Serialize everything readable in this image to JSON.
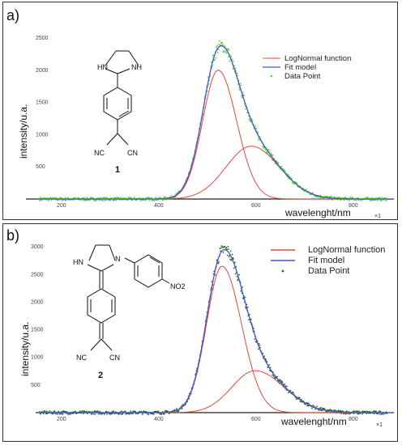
{
  "colors": {
    "lognormal": "#e8473f",
    "fit": "#4b4fd6",
    "points_a": "#42dd2a",
    "points_b": "#1e6b2a",
    "axis": "#222222"
  },
  "chart_data": [
    {
      "type": "line",
      "panel_label": "a)",
      "xlabel": "wavelenght/nm",
      "ylabel": "intensity/u.a.",
      "x_multiplier": "×1",
      "xlim": [
        150,
        880
      ],
      "ylim": [
        0,
        2550
      ],
      "x_ticks": [
        200,
        400,
        600,
        800
      ],
      "y_ticks": [
        500,
        1000,
        1500,
        2000,
        2500
      ],
      "legend": [
        "LogNormal function",
        "Fit model",
        "Data Point"
      ],
      "legend_position": "top-right",
      "components": [
        {
          "name": "LogNormal function",
          "peak_x": 522,
          "peak_y": 2000,
          "sigma_left": 32,
          "sigma_right": 38
        },
        {
          "name": "LogNormal function",
          "peak_x": 590,
          "peak_y": 820,
          "sigma_left": 52,
          "sigma_right": 58
        }
      ],
      "series": [
        {
          "name": "LogNormal function",
          "style": "line"
        },
        {
          "name": "Fit model",
          "style": "line"
        },
        {
          "name": "Data Point",
          "style": "points",
          "baseline_noise": 25
        }
      ],
      "molecule": {
        "atoms": [
          "HN",
          "NH",
          "NC",
          "CN"
        ],
        "compound_number": "1"
      }
    },
    {
      "type": "line",
      "panel_label": "b)",
      "xlabel": "wavelenght/nm",
      "ylabel": "intensity/u.a.",
      "x_multiplier": "×1",
      "xlim": [
        150,
        880
      ],
      "ylim": [
        -300,
        3150
      ],
      "x_ticks": [
        200,
        400,
        600,
        800
      ],
      "y_ticks": [
        500,
        1000,
        1500,
        2000,
        2500,
        3000
      ],
      "legend": [
        "LogNormal function",
        "Fit model",
        "Data Point"
      ],
      "legend_position": "top-right",
      "components": [
        {
          "name": "LogNormal function",
          "peak_x": 530,
          "peak_y": 2650,
          "sigma_left": 32,
          "sigma_right": 40
        },
        {
          "name": "LogNormal function",
          "peak_x": 598,
          "peak_y": 760,
          "sigma_left": 48,
          "sigma_right": 60
        }
      ],
      "series": [
        {
          "name": "LogNormal function",
          "style": "line"
        },
        {
          "name": "Fit model",
          "style": "line"
        },
        {
          "name": "Data Point",
          "style": "points",
          "baseline_noise": 30
        }
      ],
      "molecule": {
        "atoms": [
          "HN",
          "N",
          "NO2",
          "NC",
          "CN"
        ],
        "compound_number": "2"
      }
    }
  ]
}
